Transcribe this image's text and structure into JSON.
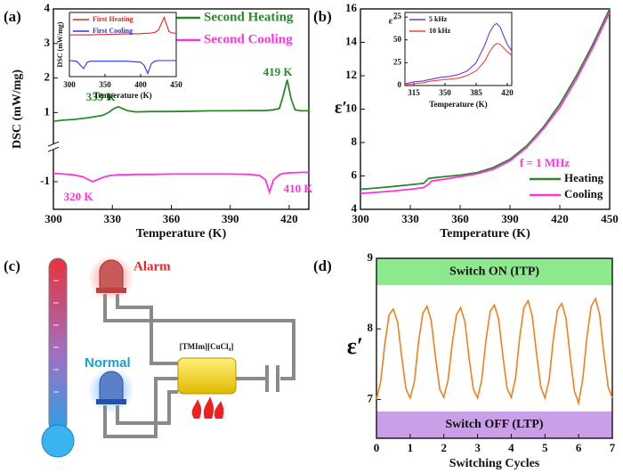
{
  "panel_labels": [
    "(a)",
    "(b)",
    "(c)",
    "(d)"
  ],
  "diagram": {
    "alarm": "Alarm",
    "normal": "Normal",
    "component": "[TMIm][CuCl₄]"
  },
  "chart_data": [
    {
      "type": "line",
      "x_label": "Temperature (K)",
      "y_label": "DSC (mW/mg)",
      "xlim": [
        300,
        430
      ],
      "ylim": [
        -1.8,
        4
      ],
      "xticks": [
        300,
        330,
        360,
        390,
        420
      ],
      "yticks": [
        -1,
        1,
        2,
        3,
        4
      ],
      "x": [
        300,
        305,
        310,
        315,
        320,
        325,
        328,
        331,
        333,
        335,
        338,
        342,
        350,
        360,
        370,
        380,
        390,
        400,
        405,
        408,
        410,
        412,
        415,
        417,
        419,
        421,
        423,
        426,
        430
      ],
      "series": [
        {
          "name": "Second Heating",
          "color": "#2a8a2a",
          "values": [
            0.75,
            0.78,
            0.8,
            0.83,
            0.87,
            0.92,
            1.0,
            1.12,
            1.17,
            1.12,
            1.05,
            1.02,
            1.03,
            1.03,
            1.04,
            1.05,
            1.05,
            1.06,
            1.06,
            1.06,
            1.07,
            1.08,
            1.12,
            1.5,
            1.95,
            1.4,
            1.08,
            1.05,
            1.05
          ]
        },
        {
          "name": "Second Cooling",
          "color": "#ff33dd",
          "values": [
            -0.76,
            -0.78,
            -0.8,
            -0.86,
            -1.0,
            -0.88,
            -0.83,
            -0.81,
            -0.8,
            -0.8,
            -0.8,
            -0.79,
            -0.79,
            -0.78,
            -0.78,
            -0.78,
            -0.78,
            -0.79,
            -0.82,
            -0.95,
            -1.3,
            -0.95,
            -0.8,
            -0.76,
            -0.75,
            -0.74,
            -0.74,
            -0.73,
            -0.73
          ]
        }
      ],
      "annotations": [
        {
          "text": "333 K",
          "color": "#2a8a2a"
        },
        {
          "text": "419 K",
          "color": "#2a8a2a"
        },
        {
          "text": "320 K",
          "color": "#ff33dd"
        },
        {
          "text": "410 K",
          "color": "#ff33dd"
        }
      ]
    },
    {
      "type": "line",
      "x_label": "Temperature (K)",
      "y_label": "DSC (mW/mg)",
      "xlim": [
        300,
        450
      ],
      "ylim": [
        -1,
        1
      ],
      "xticks": [
        300,
        350,
        400,
        450
      ],
      "yticks": [],
      "x": [
        300,
        310,
        320,
        325,
        330,
        340,
        360,
        380,
        400,
        405,
        410,
        415,
        420,
        425,
        430,
        433,
        436,
        440,
        445,
        450
      ],
      "series": [
        {
          "name": "First Heating",
          "color": "#ee2222",
          "values": [
            0.3,
            0.3,
            0.3,
            0.3,
            0.3,
            0.31,
            0.32,
            0.33,
            0.34,
            0.35,
            0.35,
            0.36,
            0.38,
            0.45,
            0.7,
            0.85,
            0.65,
            0.4,
            0.36,
            0.35
          ]
        },
        {
          "name": "First Cooling",
          "color": "#2233ee",
          "values": [
            -0.5,
            -0.52,
            -0.75,
            -0.55,
            -0.52,
            -0.52,
            -0.52,
            -0.52,
            -0.55,
            -0.65,
            -0.9,
            -0.6,
            -0.52,
            -0.5,
            -0.5,
            -0.5,
            -0.5,
            -0.5,
            -0.5,
            -0.5
          ]
        }
      ]
    },
    {
      "type": "line",
      "x_label": "Temperature (K)",
      "y_label": "ε′",
      "xlim": [
        300,
        450
      ],
      "ylim": [
        4,
        16
      ],
      "xticks": [
        300,
        330,
        360,
        390,
        420,
        450
      ],
      "yticks": [
        4,
        6,
        8,
        10,
        12,
        14,
        16
      ],
      "x": [
        300,
        310,
        320,
        330,
        338,
        341,
        343,
        350,
        360,
        370,
        380,
        390,
        400,
        410,
        420,
        430,
        440,
        450
      ],
      "series": [
        {
          "name": "Heating",
          "color": "#2a8a2a",
          "values": [
            5.2,
            5.28,
            5.37,
            5.47,
            5.55,
            5.85,
            5.88,
            5.95,
            6.05,
            6.2,
            6.5,
            7.0,
            7.8,
            8.9,
            10.3,
            12.0,
            13.9,
            16.0
          ]
        },
        {
          "name": "Cooling",
          "color": "#ff33dd",
          "values": [
            4.95,
            5.02,
            5.1,
            5.2,
            5.3,
            5.5,
            5.7,
            5.8,
            5.95,
            6.12,
            6.4,
            6.9,
            7.7,
            8.8,
            10.1,
            11.8,
            13.7,
            15.8
          ]
        }
      ],
      "annotations": [
        {
          "text": "f = 1 MHz",
          "color": "#ff33dd"
        }
      ]
    },
    {
      "type": "line",
      "x_label": "Temperature (K)",
      "y_label": "ε″",
      "xlim": [
        305,
        425
      ],
      "ylim": [
        0,
        80
      ],
      "xticks": [
        315,
        350,
        385,
        420
      ],
      "yticks": [
        0,
        25,
        50,
        75
      ],
      "x": [
        305,
        315,
        325,
        335,
        345,
        355,
        365,
        375,
        385,
        395,
        400,
        405,
        408,
        412,
        416,
        420,
        425
      ],
      "series": [
        {
          "name": "5 kHz",
          "color": "#6a3ad8",
          "values": [
            2,
            4,
            5,
            7,
            9,
            10,
            12,
            16,
            25,
            45,
            58,
            66,
            68,
            64,
            54,
            45,
            38
          ]
        },
        {
          "name": "10 kHz",
          "color": "#ee4444",
          "values": [
            1,
            2,
            3,
            5,
            6,
            7,
            8,
            11,
            16,
            27,
            37,
            44,
            46,
            45,
            41,
            37,
            33
          ]
        }
      ]
    },
    {
      "type": "line",
      "x_label": "Switching Cycles",
      "y_label": "ε′",
      "xlim": [
        0,
        7
      ],
      "ylim": [
        6.45,
        9
      ],
      "xticks": [
        0,
        1,
        2,
        3,
        4,
        5,
        6,
        7
      ],
      "yticks": [
        7,
        8,
        9
      ],
      "bands": [
        {
          "label": "Switch ON (ITP)",
          "range": [
            8.62,
            9
          ],
          "color": "#8ee88e"
        },
        {
          "label": "Switch OFF (LTP)",
          "range": [
            6.45,
            6.83
          ],
          "color": "#c9a0e8"
        }
      ],
      "x": [
        0,
        0.125,
        0.25,
        0.375,
        0.5,
        0.625,
        0.75,
        0.875,
        1,
        1.125,
        1.25,
        1.375,
        1.5,
        1.625,
        1.75,
        1.875,
        2,
        2.125,
        2.25,
        2.375,
        2.5,
        2.625,
        2.75,
        2.875,
        3,
        3.125,
        3.25,
        3.375,
        3.5,
        3.625,
        3.75,
        3.875,
        4,
        4.125,
        4.25,
        4.375,
        4.5,
        4.625,
        4.75,
        4.875,
        5,
        5.125,
        5.25,
        5.375,
        5.5,
        5.625,
        5.75,
        5.875,
        6,
        6.125,
        6.25,
        6.375,
        6.5,
        6.625,
        6.75,
        6.875,
        7
      ],
      "series": [
        {
          "name": "ε′",
          "color": "#f08020",
          "values": [
            7.0,
            7.25,
            7.8,
            8.2,
            8.28,
            8.1,
            7.6,
            7.15,
            7.02,
            7.25,
            7.82,
            8.22,
            8.32,
            8.12,
            7.6,
            7.15,
            7.03,
            7.27,
            7.8,
            8.2,
            8.3,
            8.1,
            7.58,
            7.15,
            7.02,
            7.28,
            7.84,
            8.25,
            8.34,
            8.14,
            7.62,
            7.16,
            7.03,
            7.3,
            7.88,
            8.3,
            8.4,
            8.18,
            7.65,
            7.18,
            7.02,
            7.28,
            7.86,
            8.27,
            8.36,
            8.15,
            7.6,
            7.12,
            6.95,
            7.3,
            7.9,
            8.32,
            8.43,
            8.2,
            7.65,
            7.18,
            7.02
          ]
        }
      ]
    }
  ]
}
